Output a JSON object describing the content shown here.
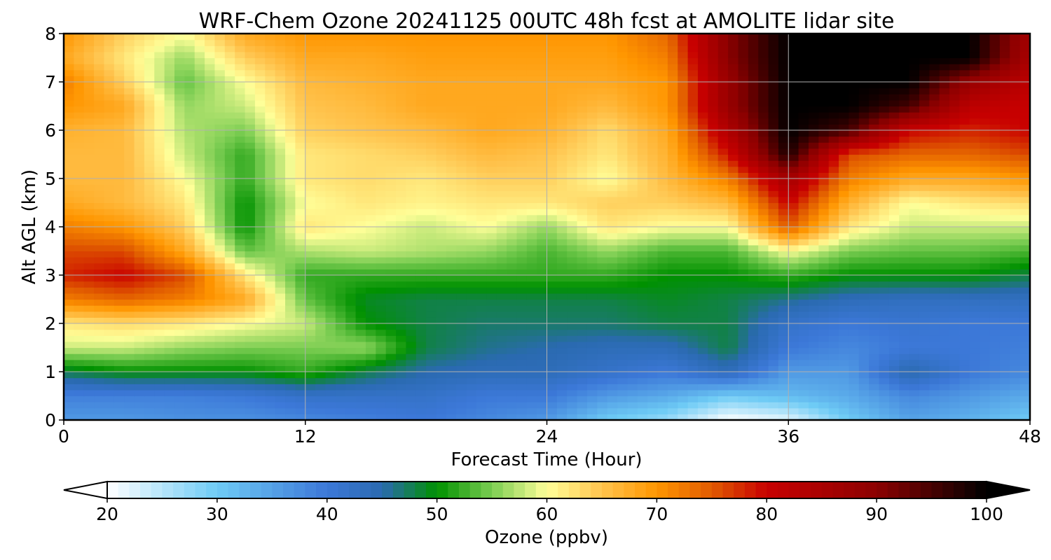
{
  "chart_data": {
    "type": "heatmap",
    "title": "WRF-Chem Ozone  20241125 00UTC 48h fcst at AMOLITE lidar site",
    "xlabel": "Forecast Time (Hour)",
    "ylabel": "Alt AGL (km)",
    "xlim": [
      0,
      48
    ],
    "ylim": [
      0,
      8
    ],
    "x_ticks": [
      "0",
      "12",
      "24",
      "36",
      "48"
    ],
    "y_ticks": [
      "0",
      "1",
      "2",
      "3",
      "4",
      "5",
      "6",
      "7",
      "8"
    ],
    "grid": true,
    "x": [
      0,
      3,
      6,
      9,
      12,
      15,
      18,
      21,
      24,
      27,
      30,
      33,
      36,
      39,
      42,
      45,
      48
    ],
    "y": [
      0,
      0.5,
      1,
      1.5,
      2,
      2.5,
      3,
      3.5,
      4,
      4.5,
      5,
      5.5,
      6,
      6.5,
      7,
      7.5,
      8
    ],
    "z_ozone_ppbv": [
      [
        36,
        36,
        37,
        37,
        38,
        39,
        40,
        38,
        36,
        30,
        27,
        20,
        22,
        30,
        35,
        33,
        30
      ],
      [
        39,
        39,
        39,
        40,
        42,
        42,
        42,
        40,
        40,
        36,
        34,
        30,
        32,
        34,
        38,
        36,
        34
      ],
      [
        48,
        50,
        50,
        50,
        52,
        48,
        45,
        44,
        44,
        42,
        40,
        44,
        36,
        36,
        45,
        40,
        38
      ],
      [
        58,
        58,
        56,
        55,
        55,
        56,
        48,
        46,
        45,
        44,
        44,
        48,
        40,
        38,
        40,
        40,
        39
      ],
      [
        62,
        63,
        62,
        60,
        58,
        50,
        48,
        47,
        47,
        47,
        48,
        48,
        42,
        40,
        41,
        40,
        40
      ],
      [
        72,
        74,
        72,
        68,
        54,
        49,
        48,
        48,
        48,
        48,
        49,
        48,
        46,
        44,
        43,
        43,
        43
      ],
      [
        78,
        80,
        76,
        62,
        52,
        52,
        52,
        52,
        52,
        52,
        50,
        50,
        52,
        50,
        50,
        50,
        48
      ],
      [
        76,
        76,
        68,
        54,
        57,
        58,
        57,
        56,
        53,
        56,
        53,
        53,
        60,
        55,
        54,
        54,
        53
      ],
      [
        72,
        70,
        64,
        50,
        62,
        60,
        58,
        60,
        56,
        62,
        60,
        60,
        75,
        62,
        58,
        58,
        58
      ],
      [
        68,
        66,
        62,
        50,
        60,
        62,
        61,
        62,
        62,
        64,
        64,
        66,
        80,
        67,
        60,
        62,
        63
      ],
      [
        66,
        66,
        60,
        52,
        62,
        63,
        62,
        64,
        64,
        60,
        66,
        72,
        86,
        72,
        68,
        68,
        70
      ],
      [
        66,
        66,
        58,
        52,
        62,
        63,
        64,
        66,
        65,
        62,
        67,
        79,
        98,
        76,
        74,
        74,
        76
      ],
      [
        67,
        66,
        57,
        55,
        64,
        65,
        66,
        68,
        67,
        63,
        68,
        84,
        100,
        95,
        80,
        78,
        80
      ],
      [
        70,
        68,
        56,
        58,
        65,
        66,
        68,
        68,
        68,
        66,
        70,
        88,
        100,
        100,
        95,
        82,
        80
      ],
      [
        72,
        64,
        54,
        60,
        66,
        67,
        68,
        68,
        68,
        68,
        70,
        88,
        100,
        100,
        100,
        88,
        82
      ],
      [
        68,
        62,
        56,
        64,
        68,
        68,
        69,
        69,
        69,
        69,
        72,
        90,
        100,
        100,
        100,
        100,
        85
      ],
      [
        70,
        64,
        60,
        68,
        70,
        70,
        70,
        70,
        70,
        70,
        74,
        90,
        100,
        100,
        100,
        100,
        86
      ]
    ],
    "colorbar": {
      "label": "Ozone  (ppbv)",
      "min": 20,
      "max": 100,
      "ticks": [
        "20",
        "30",
        "40",
        "50",
        "60",
        "70",
        "80",
        "90",
        "100"
      ],
      "extend": "both",
      "colors": [
        {
          "v": 20,
          "c": "#ffffff"
        },
        {
          "v": 30,
          "c": "#6ecbf5"
        },
        {
          "v": 40,
          "c": "#3c78d8"
        },
        {
          "v": 45,
          "c": "#2a6ab0"
        },
        {
          "v": 50,
          "c": "#009100"
        },
        {
          "v": 55,
          "c": "#7bcd52"
        },
        {
          "v": 60,
          "c": "#ffff99"
        },
        {
          "v": 65,
          "c": "#ffc34d"
        },
        {
          "v": 70,
          "c": "#ff9600"
        },
        {
          "v": 75,
          "c": "#e05a00"
        },
        {
          "v": 80,
          "c": "#c80000"
        },
        {
          "v": 90,
          "c": "#8c0000"
        },
        {
          "v": 100,
          "c": "#000000"
        }
      ]
    }
  }
}
